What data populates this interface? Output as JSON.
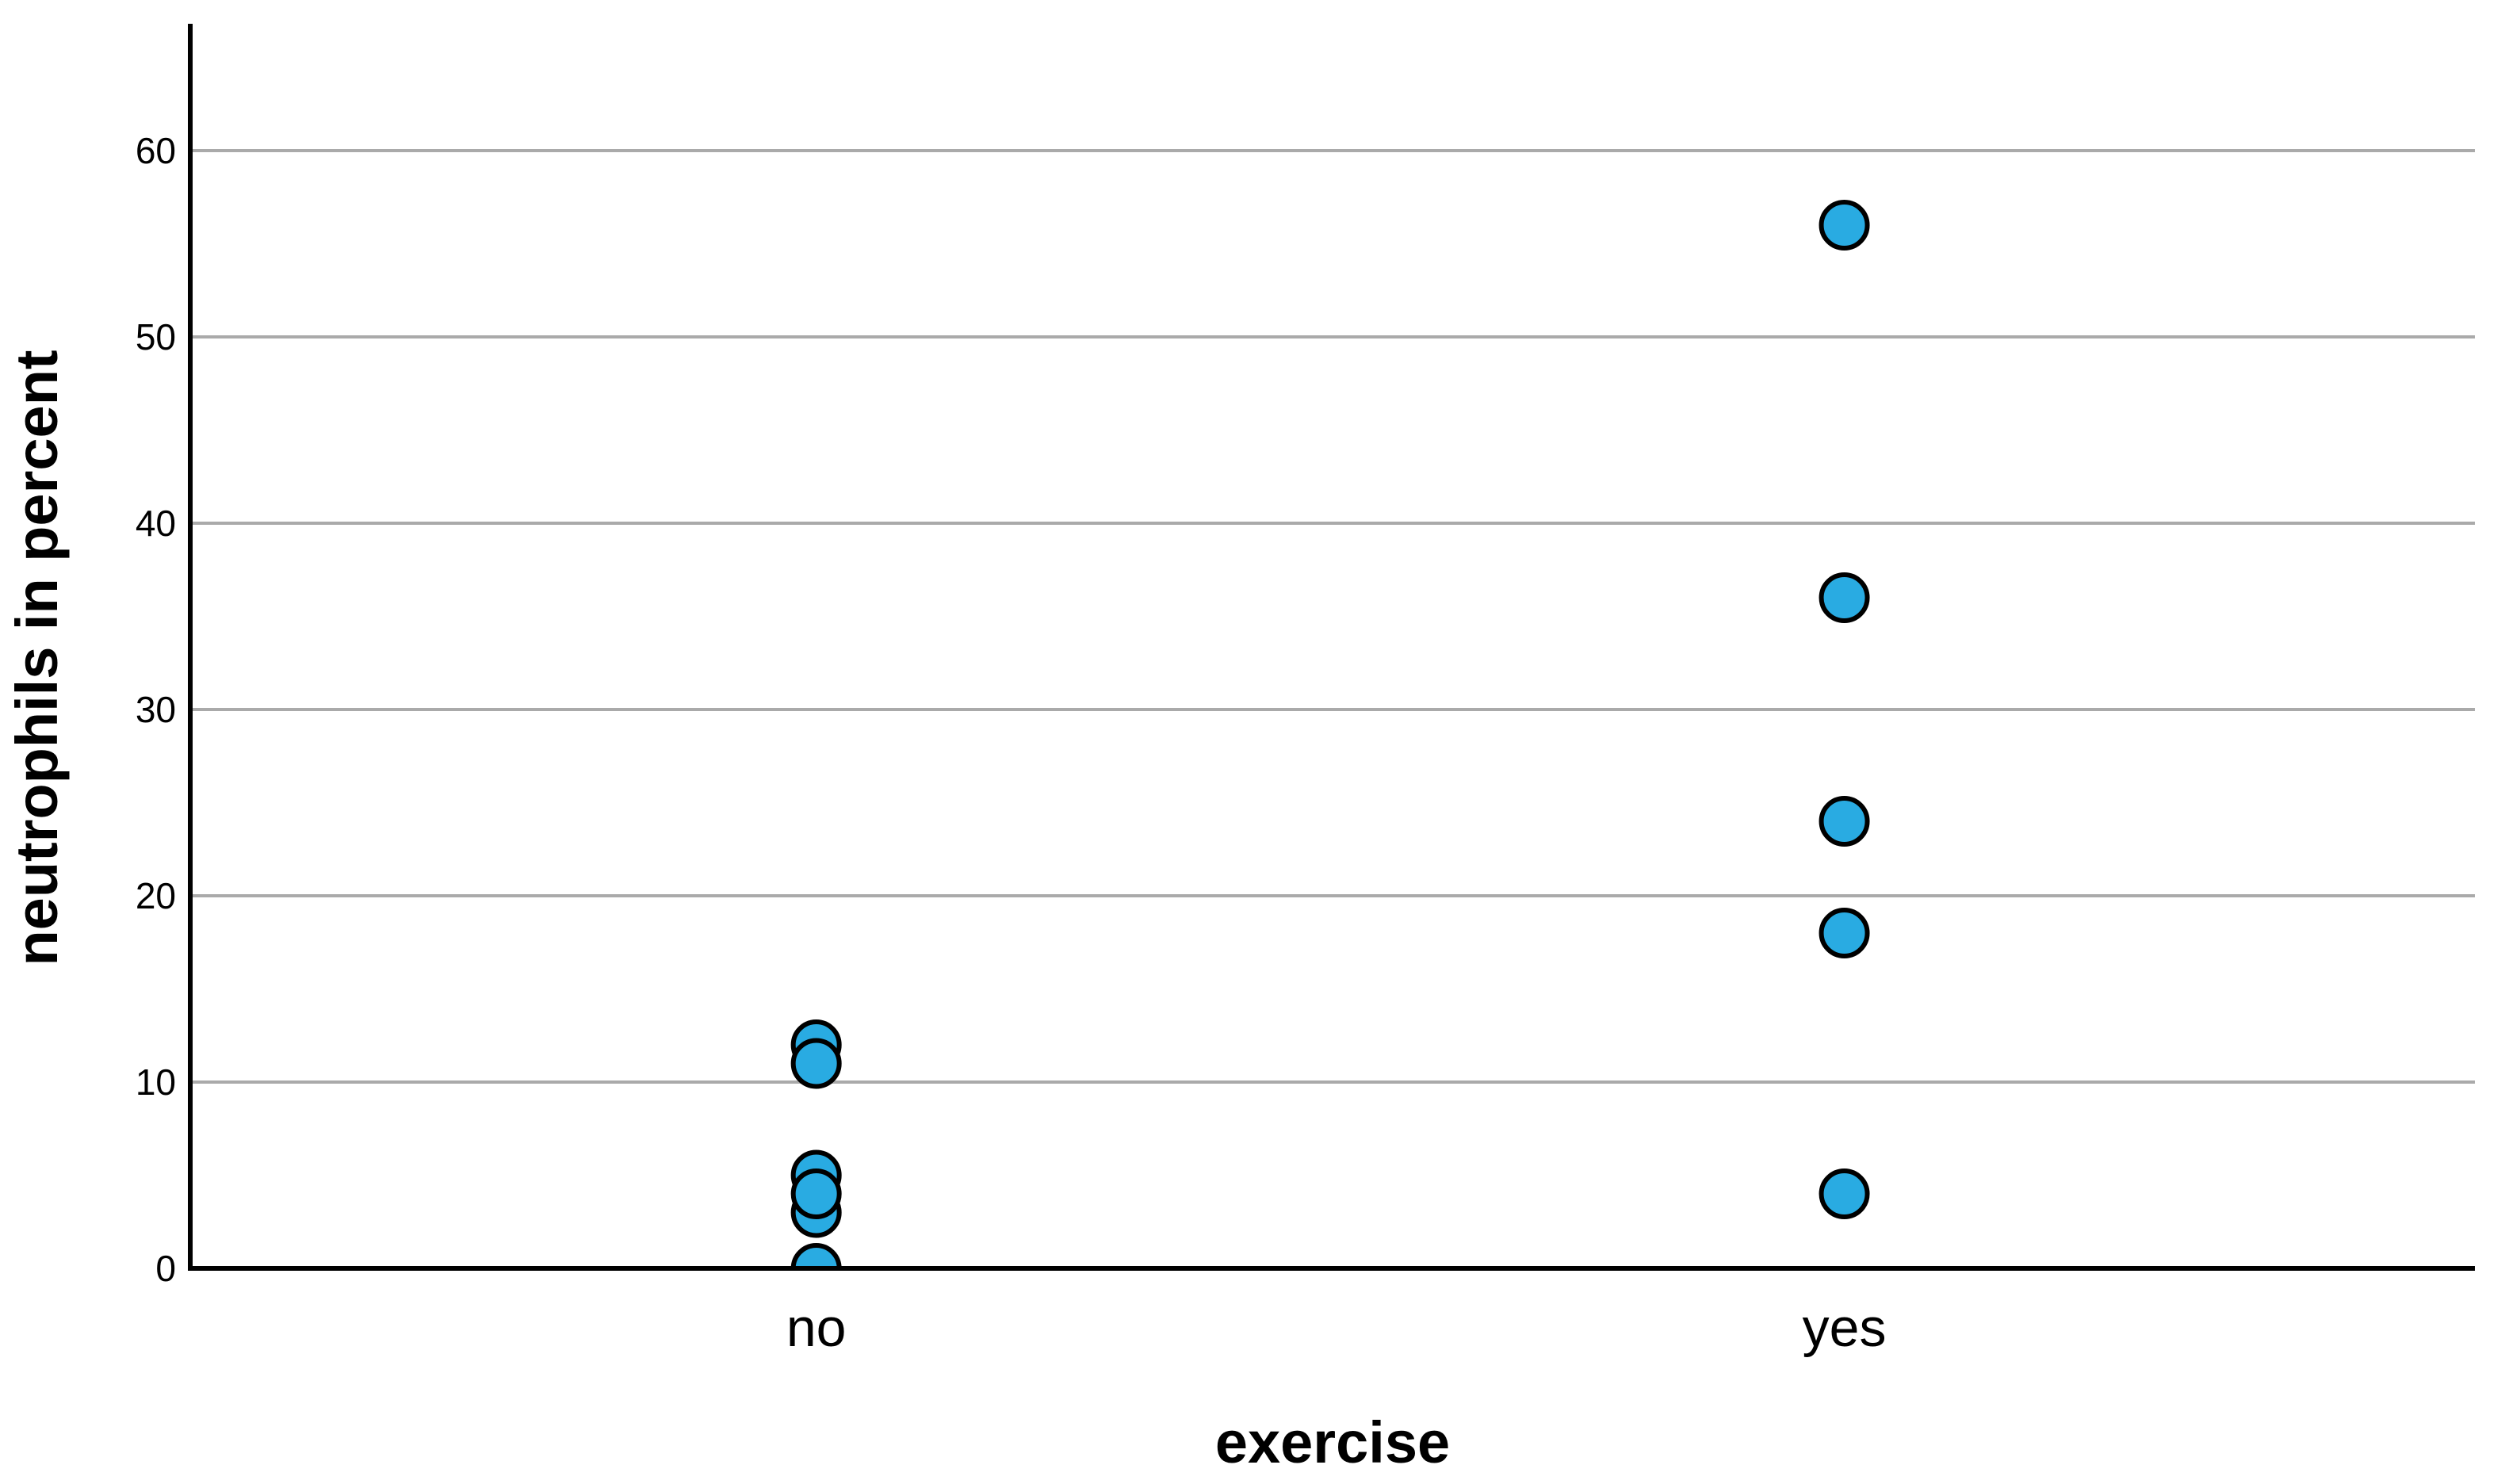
{
  "chart_data": {
    "type": "scatter",
    "title": "",
    "xlabel": "exercise",
    "ylabel": "neutrophils in percent",
    "categories": [
      "no",
      "yes"
    ],
    "series": [
      {
        "name": "no",
        "values": [
          12,
          11,
          5,
          3,
          4,
          0
        ]
      },
      {
        "name": "yes",
        "values": [
          56,
          36,
          24,
          18,
          4
        ]
      }
    ],
    "yticks": [
      0,
      10,
      20,
      30,
      40,
      50,
      60
    ],
    "ylim": [
      0,
      66.8
    ],
    "grid": "horizontal-gridlines-only",
    "legend": "none",
    "marker": "circle"
  },
  "colors": {
    "point_fill": "#29ABE2",
    "point_stroke": "#000000",
    "gridline": "#AAAAAA",
    "axis": "#000000",
    "background": "#FFFFFF",
    "text": "#000000"
  }
}
